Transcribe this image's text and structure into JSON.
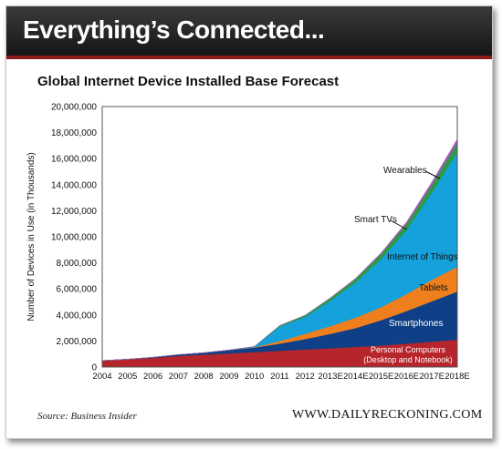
{
  "header": {
    "title": "Everything’s Connected..."
  },
  "footer": {
    "source": "Source:  Business Insider",
    "site": "WWW.DAILYRECKONING.COM"
  },
  "chart_data": {
    "type": "area",
    "title": "Global Internet Device Installed Base Forecast",
    "ylabel": "Number of Devices in Use (in Thousands)",
    "xlabel": "",
    "stacked": true,
    "categories": [
      "2004",
      "2005",
      "2006",
      "2007",
      "2008",
      "2009",
      "2010",
      "2011",
      "2012",
      "2013E",
      "2014E",
      "2015E",
      "2016E",
      "2017E",
      "2018E"
    ],
    "ylim": [
      0,
      20000000
    ],
    "yticks": [
      "0",
      "2,000,000",
      "4,000,000",
      "6,000,000",
      "8,000,000",
      "10,000,000",
      "12,000,000",
      "14,000,000",
      "16,000,000",
      "18,000,000",
      "20,000,000"
    ],
    "grid": false,
    "series": [
      {
        "name": "Personal Computers (Desktop and Notebook)",
        "color": "#b5252b",
        "values": [
          500000,
          600000,
          700000,
          850000,
          950000,
          1050000,
          1150000,
          1250000,
          1350000,
          1450000,
          1550000,
          1650000,
          1800000,
          1950000,
          2100000
        ]
      },
      {
        "name": "Smartphones",
        "color": "#0f3f86",
        "values": [
          0,
          0,
          50000,
          100000,
          150000,
          250000,
          350000,
          550000,
          800000,
          1100000,
          1450000,
          1950000,
          2500000,
          3100000,
          3700000
        ]
      },
      {
        "name": "Tablets",
        "color": "#ef7f1c",
        "values": [
          0,
          0,
          0,
          0,
          0,
          0,
          20000,
          200000,
          400000,
          600000,
          800000,
          1000000,
          1300000,
          1650000,
          1900000
        ]
      },
      {
        "name": "Internet of Things",
        "color": "#14a1dc",
        "values": [
          0,
          0,
          0,
          0,
          0,
          0,
          50000,
          1100000,
          1300000,
          1950000,
          2700000,
          3700000,
          4900000,
          6700000,
          8800000
        ]
      },
      {
        "name": "Smart TVs",
        "color": "#2a9a45",
        "values": [
          0,
          0,
          0,
          0,
          0,
          0,
          0,
          80000,
          120000,
          200000,
          280000,
          380000,
          480000,
          580000,
          700000
        ]
      },
      {
        "name": "Wearables",
        "color": "#a05ab4",
        "values": [
          0,
          0,
          0,
          0,
          0,
          0,
          0,
          0,
          0,
          20000,
          50000,
          90000,
          150000,
          220000,
          300000
        ]
      }
    ],
    "labels": {
      "wearables": "Wearables",
      "smart_tvs": "Smart TVs",
      "iot": "Internet of Things",
      "tablets": "Tablets",
      "smartphones": "Smartphones",
      "pcs_line1": "Personal Computers",
      "pcs_line2": "(Desktop and Notebook)"
    }
  }
}
